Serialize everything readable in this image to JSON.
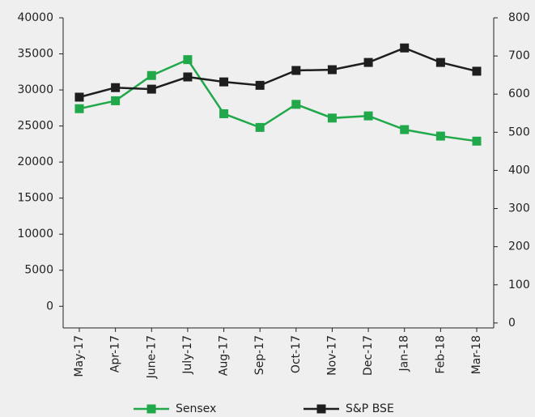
{
  "chart_data": {
    "type": "line",
    "categories": [
      "May-17",
      "Apr-17",
      "June-17",
      "July-17",
      "Aug-17",
      "Sep-17",
      "Oct-17",
      "Nov-17",
      "Dec-17",
      "Jan-18",
      "Feb-18",
      "Mar-18"
    ],
    "series": [
      {
        "name": "Sensex",
        "color": "#21a84a",
        "values": [
          27400,
          28500,
          32000,
          34200,
          26700,
          24800,
          28000,
          26100,
          26400,
          24500,
          23600,
          22900
        ]
      },
      {
        "name": "S&P BSE",
        "color": "#1e1e1e",
        "axis": "y2",
        "values": [
          592,
          617,
          613,
          645,
          632,
          623,
          662,
          664,
          683,
          721,
          683,
          660
        ]
      }
    ],
    "ylim": [
      -3000,
      40000
    ],
    "yticks": [
      0,
      5000,
      10000,
      15000,
      20000,
      25000,
      30000,
      35000,
      40000
    ],
    "y2lim": [
      -13,
      800
    ],
    "y2ticks": [
      0,
      100,
      200,
      300,
      400,
      500,
      600,
      700,
      800
    ],
    "legend": "bottom"
  }
}
